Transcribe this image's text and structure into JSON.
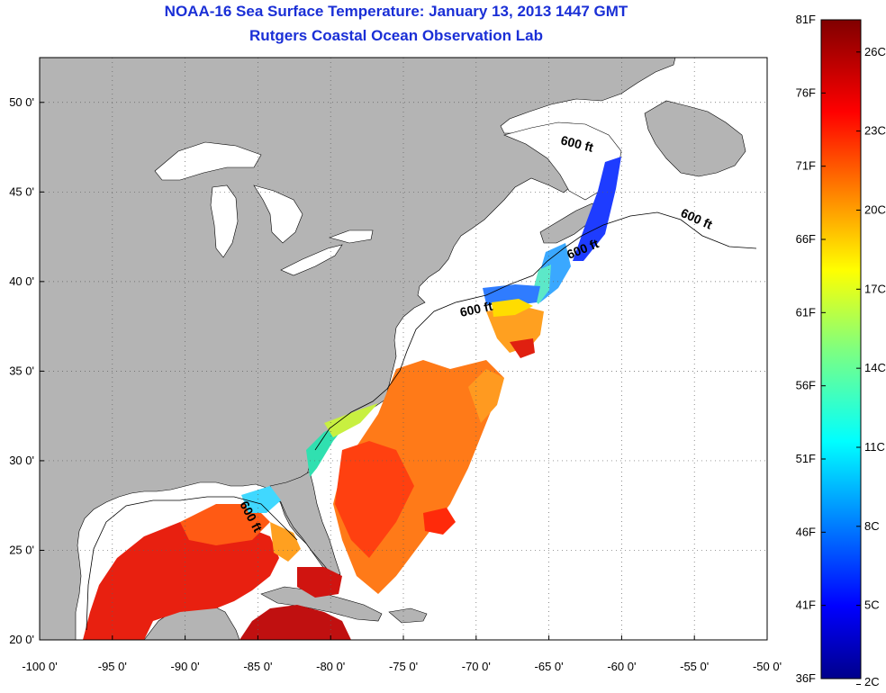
{
  "title": {
    "line1": "NOAA-16 Sea Surface Temperature:  January 13, 2013 1447 GMT",
    "line2": "Rutgers Coastal Ocean Observation Lab"
  },
  "map": {
    "lon_range": [
      -100,
      -50
    ],
    "lat_range": [
      20,
      52.5
    ],
    "lon_ticks": [
      "-100 0'",
      "-95 0'",
      "-90 0'",
      "-85 0'",
      "-80 0'",
      "-75 0'",
      "-70 0'",
      "-65 0'",
      "-60 0'",
      "-55 0'",
      "-50 0'"
    ],
    "lat_ticks": [
      "20 0'",
      "25 0'",
      "30 0'",
      "35 0'",
      "40 0'",
      "45 0'",
      "50 0'"
    ],
    "grid": "dotted",
    "land_color": "#b4b4b4",
    "no_data_color": "#ffffff",
    "depth_labels": [
      "600 ft",
      "600 ft",
      "600 ft",
      "600 ft",
      "600 ft"
    ]
  },
  "colorbar": {
    "fahrenheit_labels": [
      "81F",
      "76F",
      "71F",
      "66F",
      "61F",
      "56F",
      "51F",
      "46F",
      "41F",
      "36F"
    ],
    "celsius_labels": [
      "26C",
      "23C",
      "20C",
      "17C",
      "14C",
      "11C",
      "8C",
      "5C",
      "2C"
    ],
    "range_f": [
      36,
      81
    ],
    "range_c": [
      2,
      27
    ],
    "colormap": "jet"
  }
}
